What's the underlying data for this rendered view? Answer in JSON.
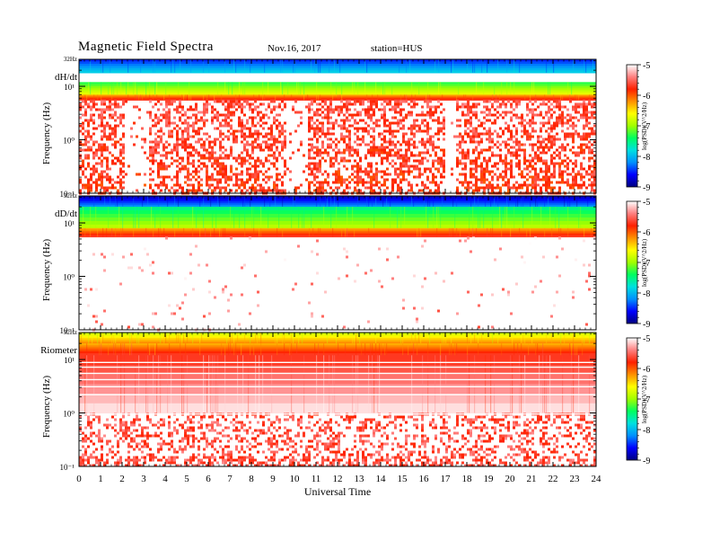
{
  "header": {
    "title": "Magnetic  Field  Spectra",
    "date": "Nov.16, 2017",
    "station": "station=HUS"
  },
  "colorbar": {
    "label": "log(PSD)(V^2/Hz)",
    "ticks": [
      "-5",
      "-6",
      "-7",
      "-8",
      "-9"
    ],
    "range": [
      -9,
      -5
    ],
    "colors": [
      "#000080",
      "#0000ff",
      "#0090ff",
      "#00e0e0",
      "#00ff60",
      "#a0ff00",
      "#ffff00",
      "#ff9000",
      "#ff2000",
      "#ff8080",
      "#ffffff"
    ]
  },
  "chart_data": [
    {
      "type": "heatmap",
      "panel_label": "dH/dt",
      "top_label": "32Hz",
      "ylabel": "Frequency  (Hz)",
      "yscale": "log",
      "yticks": [
        "10⁻¹",
        "10⁰",
        "10¹"
      ],
      "ylim": [
        0.1,
        32
      ],
      "x": {
        "label": "",
        "range": [
          0,
          24
        ],
        "ticks": []
      },
      "z_range_log10": [
        -9,
        -5
      ],
      "bands": [
        {
          "from": 18,
          "to": 32,
          "log10_psd": -8.2,
          "note": "blue"
        },
        {
          "from": 7,
          "to": 12,
          "log10_psd": -7.0,
          "note": "green-yellow"
        },
        {
          "from": 5.5,
          "to": 7,
          "log10_psd": -6.0,
          "note": "red"
        },
        {
          "from": 0.1,
          "to": 5.5,
          "log10_psd": -5.6,
          "note": "sparse red, gaps 2-3 UT, 10 UT, 17 UT"
        }
      ]
    },
    {
      "type": "heatmap",
      "panel_label": "dD/dt",
      "top_label": "32Hz",
      "ylabel": "Frequency  (Hz)",
      "yscale": "log",
      "yticks": [
        "10⁻¹",
        "10⁰",
        "10¹"
      ],
      "ylim": [
        0.1,
        32
      ],
      "x": {
        "label": "",
        "range": [
          0,
          24
        ],
        "ticks": []
      },
      "z_range_log10": [
        -9,
        -5
      ],
      "bands": [
        {
          "from": 20,
          "to": 32,
          "log10_psd": -8.5,
          "note": "blue"
        },
        {
          "from": 8,
          "to": 20,
          "log10_psd": -7.2,
          "note": "cyan-green"
        },
        {
          "from": 5.5,
          "to": 8,
          "log10_psd": -6.0,
          "note": "red"
        },
        {
          "from": 0.1,
          "to": 5.5,
          "log10_psd": -5.2,
          "note": "mostly white with scattered dots"
        }
      ]
    },
    {
      "type": "heatmap",
      "panel_label": "Riometer",
      "top_label": "32Hz",
      "ylabel": "Frequency  (Hz)",
      "yscale": "log",
      "yticks": [
        "10⁻¹",
        "10⁰",
        "10¹"
      ],
      "ylim": [
        0.1,
        32
      ],
      "x": {
        "label": "Universal Time",
        "range": [
          0,
          24
        ],
        "ticks": [
          "0",
          "1",
          "2",
          "3",
          "4",
          "5",
          "6",
          "7",
          "8",
          "9",
          "10",
          "11",
          "12",
          "13",
          "14",
          "15",
          "16",
          "17",
          "18",
          "19",
          "20",
          "21",
          "22",
          "23",
          "24"
        ]
      },
      "z_range_log10": [
        -9,
        -5
      ],
      "bands": [
        {
          "from": 20,
          "to": 32,
          "log10_psd": -6.5,
          "note": "yellow-orange"
        },
        {
          "from": 12,
          "to": 20,
          "log10_psd": -6.0,
          "note": "red"
        },
        {
          "from": 1,
          "to": 12,
          "log10_psd": -5.4,
          "note": "pink with white lines"
        },
        {
          "from": 0.1,
          "to": 1,
          "log10_psd": -5.6,
          "note": "dense red speckle"
        }
      ]
    }
  ]
}
